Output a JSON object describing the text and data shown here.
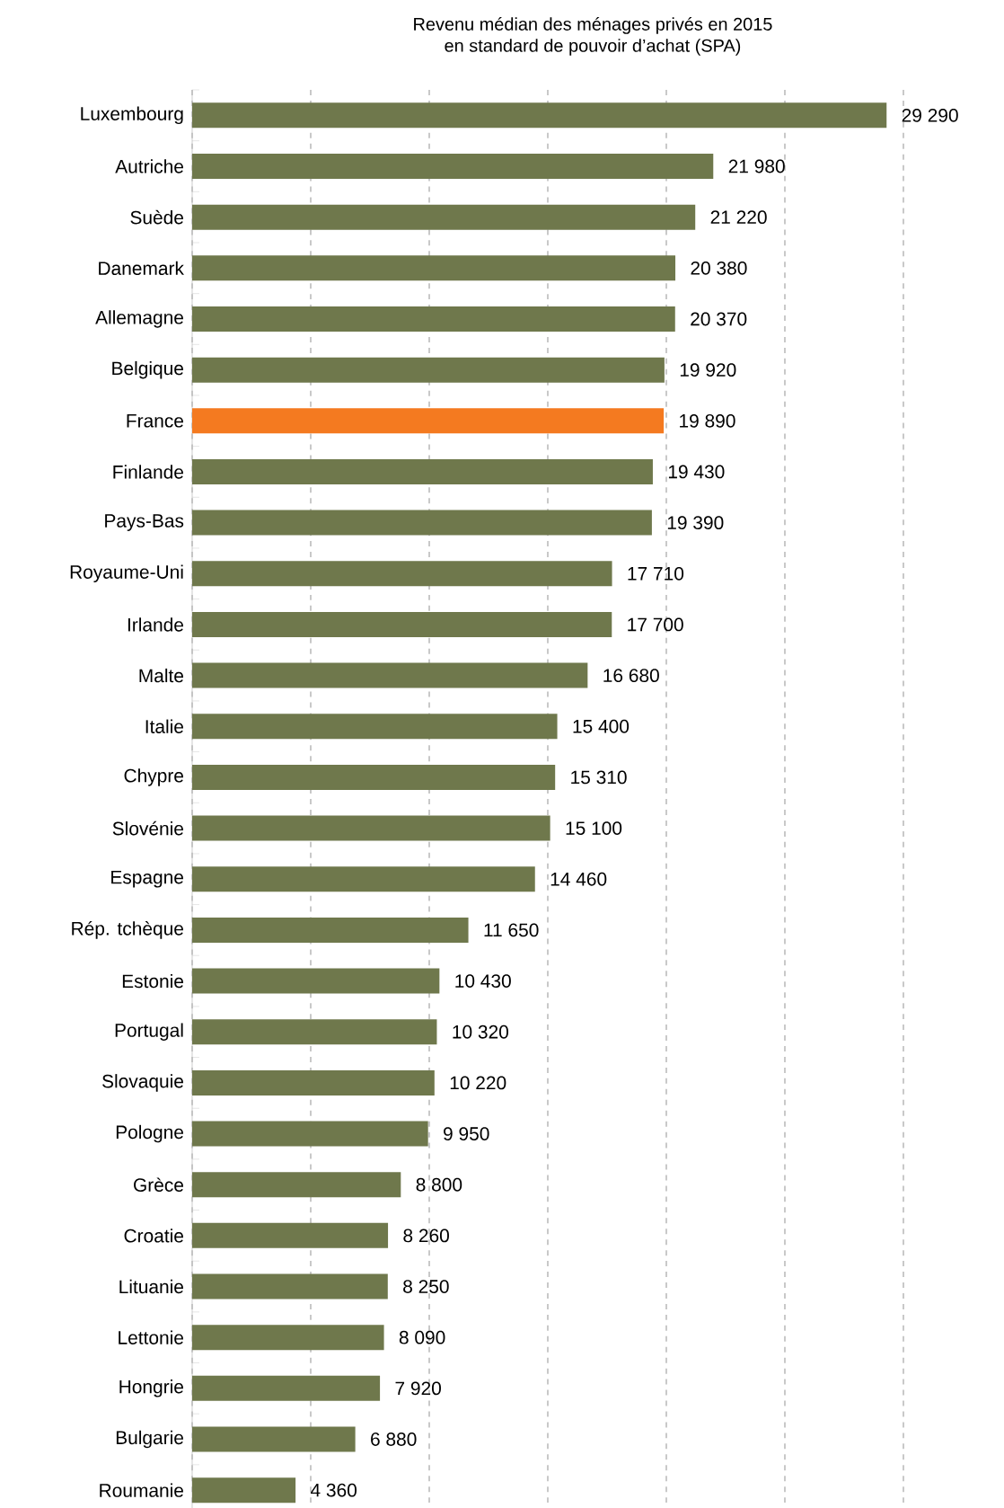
{
  "chart_data": {
    "type": "bar",
    "orientation": "horizontal",
    "title": "Revenu médian des ménages privés en 2015",
    "subtitle": "en standard de pouvoir d’achat (SPA)",
    "categories": [
      "Luxembourg",
      "Autriche",
      "Suède",
      "Danemark",
      "Allemagne",
      "Belgique",
      "France",
      "Finlande",
      "Pays-Bas",
      "Royaume-Uni",
      "Irlande",
      "Malte",
      "Italie",
      "Chypre",
      "Slovénie",
      "Espagne",
      "Rép. tchèque",
      "Estonie",
      "Portugal",
      "Slovaquie",
      "Pologne",
      "Grèce",
      "Croatie",
      "Lituanie",
      "Lettonie",
      "Hongrie",
      "Bulgarie",
      "Roumanie"
    ],
    "values": [
      29290,
      21980,
      21220,
      20380,
      20370,
      19920,
      19890,
      19430,
      19390,
      17710,
      17700,
      16680,
      15400,
      15310,
      15100,
      14460,
      11650,
      10430,
      10320,
      10220,
      9950,
      8800,
      8260,
      8250,
      8090,
      7920,
      6880,
      4360
    ],
    "value_labels": [
      "29 290",
      "21 980",
      "21 220",
      "20 380",
      "20 370",
      "19 920",
      "19 890",
      "19 430",
      "19 390",
      "17 710",
      "17 700",
      "16 680",
      "15 400",
      "15 310",
      "15 100",
      "14 460",
      "11 650",
      "10 430",
      "10 320",
      "10 220",
      "9 950",
      "8 800",
      "8 260",
      "8 250",
      "8 090",
      "7 920",
      "6 880",
      "4 360"
    ],
    "colors": [
      "#6f784c",
      "#6f784c",
      "#6f784c",
      "#6f784c",
      "#6f784c",
      "#6f784c",
      "#f47a20",
      "#6f784c",
      "#6f784c",
      "#6f784c",
      "#6f784c",
      "#6f784c",
      "#6f784c",
      "#6f784c",
      "#6f784c",
      "#6f784c",
      "#6f784c",
      "#6f784c",
      "#6f784c",
      "#6f784c",
      "#6f784c",
      "#6f784c",
      "#6f784c",
      "#6f784c",
      "#6f784c",
      "#6f784c",
      "#6f784c",
      "#6f784c"
    ],
    "xlim": [
      0,
      30000
    ],
    "grid": "x",
    "tick_labels": "y"
  }
}
